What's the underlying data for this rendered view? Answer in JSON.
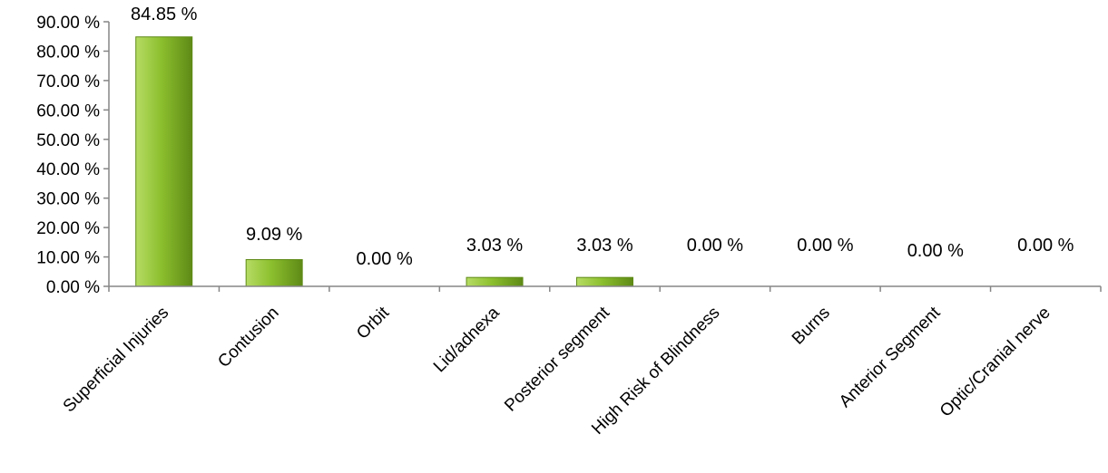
{
  "chart_data": {
    "type": "bar",
    "categories": [
      "Superficial Injuries",
      "Contusion",
      "Orbit",
      "Lid/adnexa",
      "Posterior segment",
      "High Risk of Blindness",
      "Burns",
      "Anterior Segment",
      "Optic/Cranial nerve"
    ],
    "values": [
      84.85,
      9.09,
      0.0,
      3.03,
      3.03,
      0.0,
      0.0,
      0.0,
      0.0
    ],
    "data_labels": [
      "84.85 %",
      "9.09 %",
      "0.00 %",
      "3.03 %",
      "3.03 %",
      "0.00 %",
      "0.00 %",
      "0.00 %",
      "0.00 %"
    ],
    "yticks": [
      "0.00 %",
      "10.00 %",
      "20.00 %",
      "30.00 %",
      "40.00 %",
      "50.00 %",
      "60.00 %",
      "70.00 %",
      "80.00 %",
      "90.00 %"
    ],
    "ylim": [
      0,
      90
    ],
    "title": "",
    "xlabel": "",
    "ylabel": "",
    "grid": false,
    "legend": "none",
    "colors": {
      "bar_light": "#b6dc64",
      "bar_mid": "#8cbf2e",
      "bar_dark": "#5e8a16",
      "axis": "#868686"
    }
  }
}
